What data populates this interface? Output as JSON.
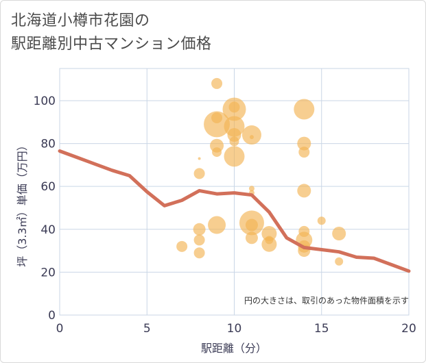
{
  "title_line1": "北海道小樽市花園の",
  "title_line2": "駅距離別中古マンション価格",
  "chart_data": {
    "type": "scatter",
    "title": "北海道小樽市花園の駅距離別中古マンション価格",
    "xlabel": "駅距離（分）",
    "ylabel": "坪（3.3㎡）単価（万円）",
    "xlim": [
      0,
      20
    ],
    "ylim": [
      0,
      115
    ],
    "xticks": [
      0,
      5,
      10,
      15,
      20
    ],
    "yticks": [
      0,
      20,
      40,
      60,
      80,
      100
    ],
    "grid": true,
    "note": "円の大きさは、取引のあった物件面積を示す",
    "colors": {
      "bubble": "#f2b454",
      "line": "#d2705a",
      "grid": "#c9d6e6"
    },
    "points": [
      {
        "x": 7,
        "y": 32,
        "r": 8
      },
      {
        "x": 8,
        "y": 66,
        "r": 8
      },
      {
        "x": 8,
        "y": 40,
        "r": 9
      },
      {
        "x": 8,
        "y": 35,
        "r": 8
      },
      {
        "x": 8,
        "y": 29,
        "r": 8
      },
      {
        "x": 8,
        "y": 73,
        "r": 2
      },
      {
        "x": 9,
        "y": 108,
        "r": 8
      },
      {
        "x": 9,
        "y": 89,
        "r": 19
      },
      {
        "x": 9,
        "y": 92,
        "r": 8
      },
      {
        "x": 9,
        "y": 79,
        "r": 10
      },
      {
        "x": 9,
        "y": 76,
        "r": 7
      },
      {
        "x": 9,
        "y": 42,
        "r": 13
      },
      {
        "x": 10,
        "y": 96,
        "r": 17
      },
      {
        "x": 10,
        "y": 97,
        "r": 8
      },
      {
        "x": 10,
        "y": 88,
        "r": 15
      },
      {
        "x": 10,
        "y": 84,
        "r": 10
      },
      {
        "x": 10,
        "y": 81,
        "r": 7
      },
      {
        "x": 10,
        "y": 74,
        "r": 15
      },
      {
        "x": 11,
        "y": 84,
        "r": 14
      },
      {
        "x": 11,
        "y": 83,
        "r": 3
      },
      {
        "x": 11,
        "y": 59,
        "r": 4
      },
      {
        "x": 11,
        "y": 57,
        "r": 4
      },
      {
        "x": 11,
        "y": 43,
        "r": 18
      },
      {
        "x": 11,
        "y": 42,
        "r": 9
      },
      {
        "x": 11,
        "y": 36,
        "r": 9
      },
      {
        "x": 12,
        "y": 38,
        "r": 11
      },
      {
        "x": 12,
        "y": 33,
        "r": 11
      },
      {
        "x": 12,
        "y": 35,
        "r": 6
      },
      {
        "x": 14,
        "y": 96,
        "r": 15
      },
      {
        "x": 14,
        "y": 80,
        "r": 10
      },
      {
        "x": 14,
        "y": 76,
        "r": 8
      },
      {
        "x": 14,
        "y": 58,
        "r": 10
      },
      {
        "x": 14,
        "y": 39,
        "r": 8
      },
      {
        "x": 14,
        "y": 35,
        "r": 12
      },
      {
        "x": 14,
        "y": 32,
        "r": 9
      },
      {
        "x": 14,
        "y": 30,
        "r": 9
      },
      {
        "x": 15,
        "y": 44,
        "r": 6
      },
      {
        "x": 16,
        "y": 38,
        "r": 10
      },
      {
        "x": 16,
        "y": 25,
        "r": 6
      }
    ],
    "trend": {
      "x": [
        0,
        1,
        2,
        3,
        4,
        5,
        6,
        7,
        8,
        9,
        10,
        11,
        12,
        13,
        14,
        15,
        16,
        17,
        18,
        19,
        20
      ],
      "y": [
        76.5,
        73.5,
        70.5,
        67.5,
        65,
        57.5,
        51,
        53.5,
        58,
        56.5,
        57,
        56,
        48,
        36,
        31.5,
        30.5,
        29.5,
        27,
        26.5,
        23.5,
        20.5
      ]
    }
  }
}
